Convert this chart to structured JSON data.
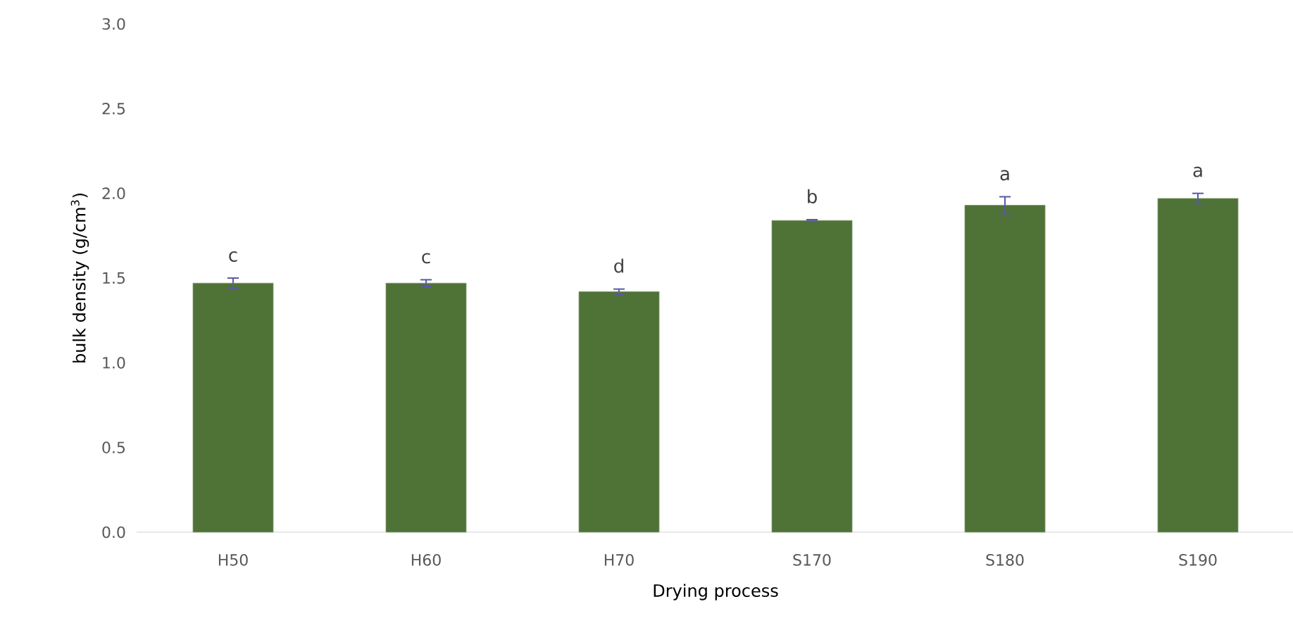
{
  "chart_data": {
    "type": "bar",
    "xlabel": "Drying process",
    "ylabel": "bulk density (g/cm$^{3}$)",
    "categories": [
      "H50",
      "H60",
      "H70",
      "S170",
      "S180",
      "S190"
    ],
    "values": [
      1.47,
      1.47,
      1.42,
      1.84,
      1.93,
      1.97
    ],
    "errors": [
      0.03,
      0.02,
      0.015,
      0.005,
      0.05,
      0.03
    ],
    "color": "#4f7236",
    "ylim": [
      0,
      3
    ],
    "yticks": [
      {
        "value": 0,
        "label": "0.0"
      },
      {
        "value": 0.5,
        "label": "0.5"
      },
      {
        "value": 1,
        "label": "1.0"
      },
      {
        "value": 1.5,
        "label": "1.5"
      },
      {
        "value": 2,
        "label": "2.0"
      },
      {
        "value": 2.5,
        "label": "2.5"
      },
      {
        "value": 3,
        "label": "3.0"
      }
    ],
    "annotations": [
      "c",
      "c",
      "d",
      "b",
      "a",
      "a"
    ]
  }
}
